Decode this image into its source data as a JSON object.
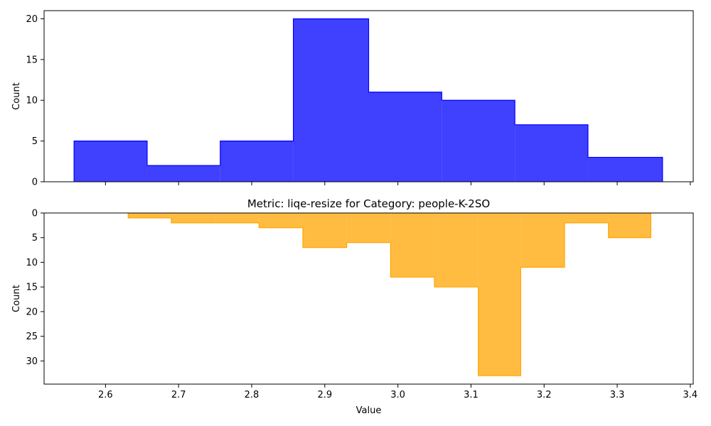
{
  "chart_data": [
    {
      "type": "histogram",
      "panel": "top",
      "title": "",
      "xlabel": "",
      "ylabel": "Count",
      "xlim": [
        2.516,
        3.404
      ],
      "ylim": [
        0,
        21
      ],
      "y_inverted": false,
      "x_ticks_labeled": false,
      "xticks": [
        2.6,
        2.7,
        2.8,
        2.9,
        3.0,
        3.1,
        3.2,
        3.3,
        3.4
      ],
      "yticks": [
        0,
        5,
        10,
        15,
        20
      ],
      "ytick_labels": [
        "0",
        "5",
        "10",
        "15",
        "20"
      ],
      "color": "#0000ff",
      "fill_opacity": 0.75,
      "bin_edges": [
        2.557,
        2.657,
        2.757,
        2.857,
        2.96,
        3.06,
        3.16,
        3.26,
        3.362
      ],
      "values": [
        5,
        2,
        5,
        20,
        11,
        10,
        7,
        3
      ]
    },
    {
      "type": "histogram",
      "panel": "bottom",
      "title": "Metric: liqe-resize for Category: people-K-2SO",
      "xlabel": "Value",
      "ylabel": "Count",
      "xlim": [
        2.516,
        3.404
      ],
      "ylim": [
        0,
        34.7
      ],
      "y_inverted": true,
      "x_ticks_labeled": true,
      "xticks": [
        2.6,
        2.7,
        2.8,
        2.9,
        3.0,
        3.1,
        3.2,
        3.3,
        3.4
      ],
      "xtick_labels": [
        "2.6",
        "2.7",
        "2.8",
        "2.9",
        "3.0",
        "3.1",
        "3.2",
        "3.3",
        "3.4"
      ],
      "yticks": [
        0,
        5,
        10,
        15,
        20,
        25,
        30
      ],
      "ytick_labels": [
        "0",
        "5",
        "10",
        "15",
        "20",
        "25",
        "30"
      ],
      "color": "#ffa500",
      "fill_opacity": 0.75,
      "bin_edges": [
        2.631,
        2.69,
        2.75,
        2.81,
        2.87,
        2.93,
        2.99,
        3.05,
        3.11,
        3.168,
        3.228,
        3.288,
        3.346
      ],
      "values": [
        1,
        2,
        2,
        3,
        7,
        6,
        13,
        15,
        33,
        11,
        2,
        5
      ]
    }
  ]
}
